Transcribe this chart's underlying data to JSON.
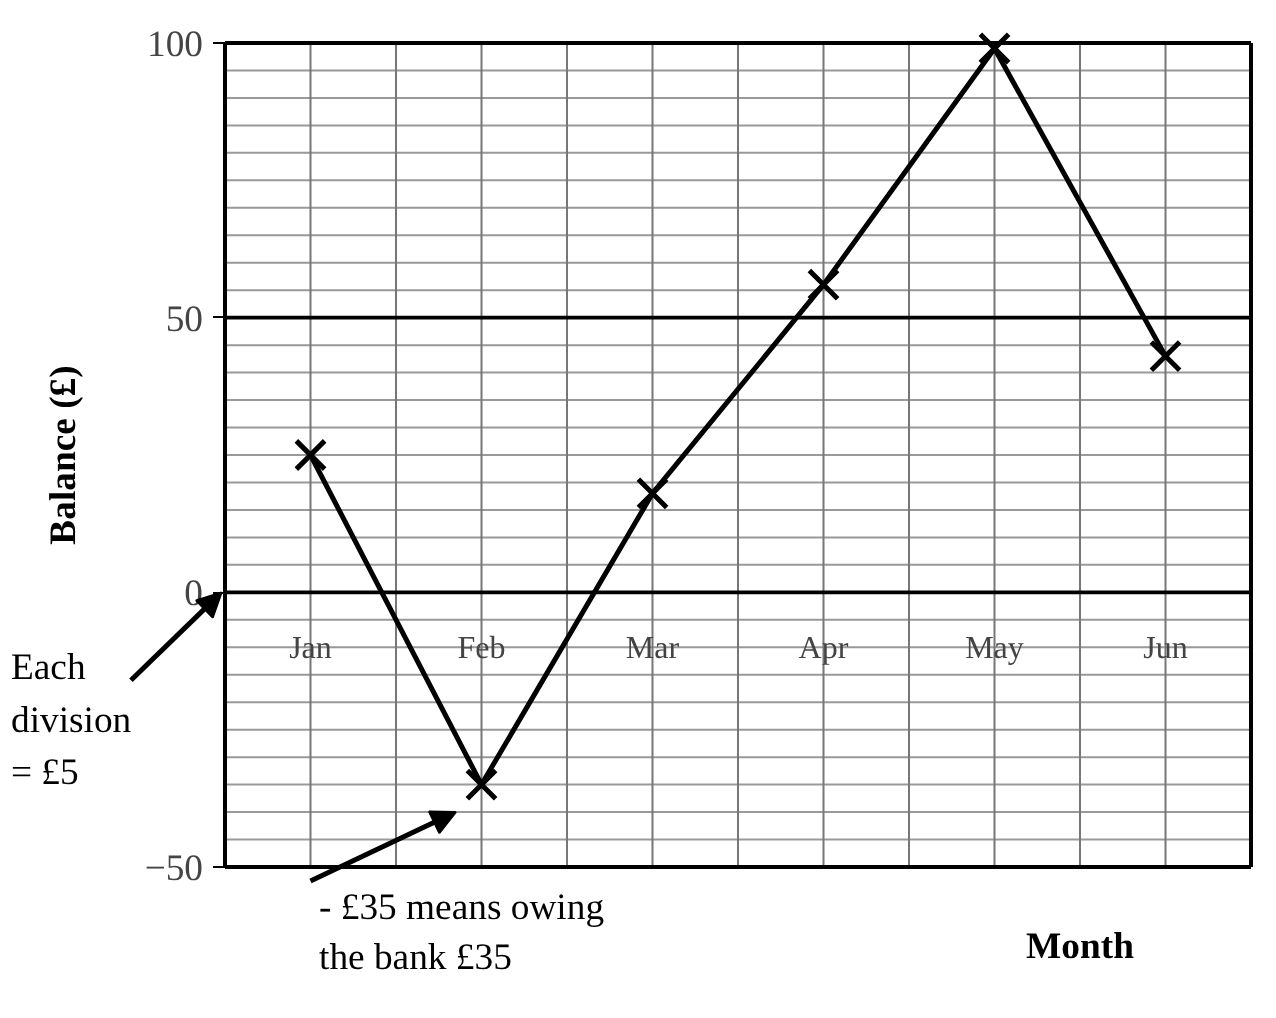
{
  "chart_data": {
    "type": "line",
    "xlabel": "Month",
    "ylabel": "Balance (£)",
    "categories": [
      "Jan",
      "Feb",
      "Mar",
      "Apr",
      "May",
      "Jun"
    ],
    "series": [
      {
        "color": "#000000",
        "values": [
          25,
          -35,
          18,
          56,
          99,
          43
        ]
      }
    ],
    "ylim": [
      -50,
      100
    ],
    "yticks": [
      -50,
      0,
      50,
      100
    ],
    "grid": true,
    "marker": "cross",
    "line_style": "solid",
    "annotations": [
      "Each division = £5",
      "- £35 means owing the bank £35"
    ]
  }
}
